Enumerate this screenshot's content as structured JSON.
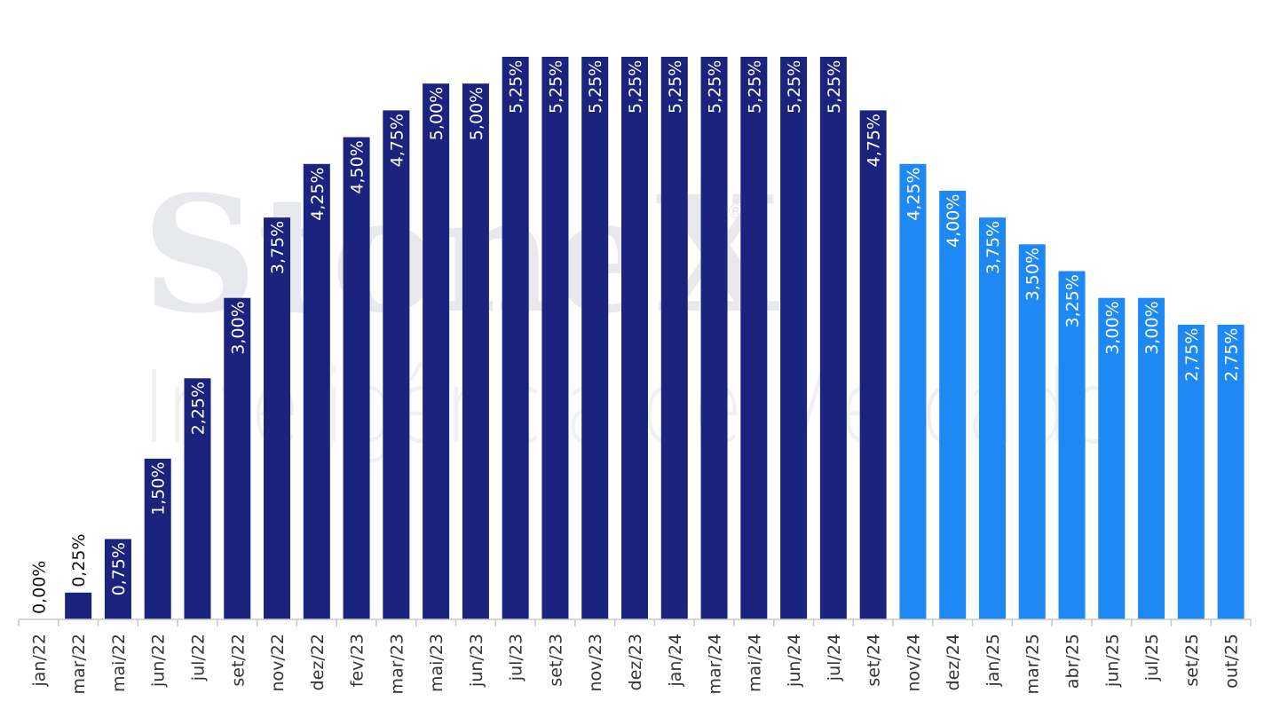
{
  "watermark": {
    "logo": "StoneX",
    "registered": "®",
    "subtitle": "Inteligência de Mercado"
  },
  "colors": {
    "realized": "#1a237e",
    "projected": "#1e88f5",
    "axis": "#c8c8c8"
  },
  "chart_data": {
    "type": "bar",
    "title": "",
    "xlabel": "",
    "ylabel": "",
    "ylim": [
      0,
      5.25
    ],
    "grid": false,
    "categories": [
      "jan/22",
      "mar/22",
      "mai/22",
      "jun/22",
      "jul/22",
      "set/22",
      "nov/22",
      "dez/22",
      "fev/23",
      "mar/23",
      "mai/23",
      "jun/23",
      "jul/23",
      "set/23",
      "nov/23",
      "dez/23",
      "jan/24",
      "mar/24",
      "mai/24",
      "jun/24",
      "jul/24",
      "set/24",
      "nov/24",
      "dez/24",
      "jan/25",
      "mar/25",
      "abr/25",
      "jun/25",
      "jul/25",
      "set/25",
      "out/25"
    ],
    "values": [
      0.0,
      0.25,
      0.75,
      1.5,
      2.25,
      3.0,
      3.75,
      4.25,
      4.5,
      4.75,
      5.0,
      5.0,
      5.25,
      5.25,
      5.25,
      5.25,
      5.25,
      5.25,
      5.25,
      5.25,
      5.25,
      4.75,
      4.25,
      4.0,
      3.75,
      3.5,
      3.25,
      3.0,
      3.0,
      2.75,
      2.75
    ],
    "data_labels": [
      "0,00%",
      "0,25%",
      "0,75%",
      "1,50%",
      "2,25%",
      "3,00%",
      "3,75%",
      "4,25%",
      "4,50%",
      "4,75%",
      "5,00%",
      "5,00%",
      "5,25%",
      "5,25%",
      "5,25%",
      "5,25%",
      "5,25%",
      "5,25%",
      "5,25%",
      "5,25%",
      "5,25%",
      "4,75%",
      "4,25%",
      "4,00%",
      "3,75%",
      "3,50%",
      "3,25%",
      "3,00%",
      "3,00%",
      "2,75%",
      "2,75%"
    ],
    "projected": [
      false,
      false,
      false,
      false,
      false,
      false,
      false,
      false,
      false,
      false,
      false,
      false,
      false,
      false,
      false,
      false,
      false,
      false,
      false,
      false,
      false,
      false,
      true,
      true,
      true,
      true,
      true,
      true,
      true,
      true,
      true
    ]
  }
}
